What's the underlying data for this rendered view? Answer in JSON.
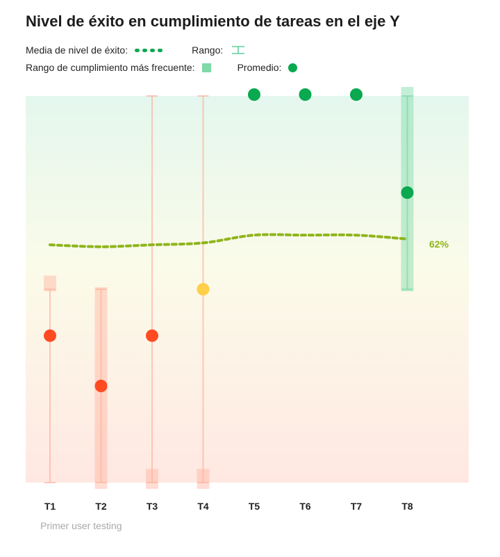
{
  "title": "Nivel de éxito en cumplimiento de tareas en el eje Y",
  "legend": {
    "mean_label": "Media de nivel de éxito:",
    "range_label": "Rango:",
    "frequent_label": "Rango de cumplimiento más frecuente:",
    "average_label": "Promedio:"
  },
  "colors": {
    "mean_line": "#8fb41c",
    "green": "#0aa84f",
    "red": "#ff4b22",
    "yellow": "#ffcf4a",
    "band_green": "#7fd9a8",
    "band_red": "#ffb3a0"
  },
  "chart_data": {
    "type": "scatter",
    "categories": [
      "T1",
      "T2",
      "T3",
      "T4",
      "T5",
      "T6",
      "T7",
      "T8"
    ],
    "ylim": [
      0,
      100
    ],
    "averages": [
      38,
      25,
      38,
      50,
      100,
      100,
      100,
      75
    ],
    "ranges": [
      [
        0,
        50
      ],
      [
        0,
        50
      ],
      [
        0,
        100
      ],
      [
        0,
        100
      ],
      null,
      null,
      null,
      [
        50,
        100
      ]
    ],
    "frequent_ranges": [
      [
        50,
        53
      ],
      [
        0,
        50
      ],
      [
        0,
        3
      ],
      [
        0,
        3
      ],
      null,
      null,
      null,
      [
        50,
        100
      ]
    ],
    "mean_line": [
      61.5,
      61,
      61.5,
      62,
      64,
      64,
      64,
      63
    ],
    "mean_label": "62%",
    "group_label": "Primer user testing"
  }
}
